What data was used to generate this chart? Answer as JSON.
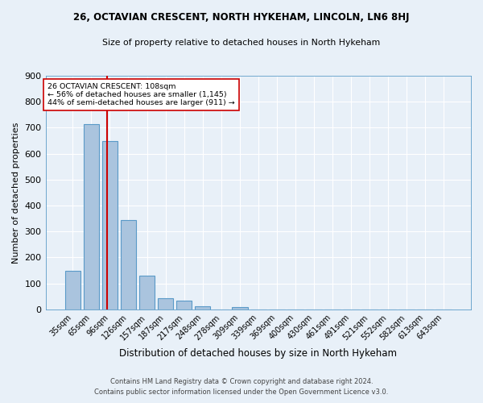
{
  "title1": "26, OCTAVIAN CRESCENT, NORTH HYKEHAM, LINCOLN, LN6 8HJ",
  "title2": "Size of property relative to detached houses in North Hykeham",
  "xlabel": "Distribution of detached houses by size in North Hykeham",
  "ylabel": "Number of detached properties",
  "footer1": "Contains HM Land Registry data © Crown copyright and database right 2024.",
  "footer2": "Contains public sector information licensed under the Open Government Licence v3.0.",
  "categories": [
    "35sqm",
    "65sqm",
    "96sqm",
    "126sqm",
    "157sqm",
    "187sqm",
    "217sqm",
    "248sqm",
    "278sqm",
    "309sqm",
    "339sqm",
    "369sqm",
    "400sqm",
    "430sqm",
    "461sqm",
    "491sqm",
    "521sqm",
    "552sqm",
    "582sqm",
    "613sqm",
    "643sqm"
  ],
  "values": [
    150,
    715,
    650,
    345,
    130,
    42,
    32,
    13,
    0,
    8,
    0,
    0,
    0,
    0,
    0,
    0,
    0,
    0,
    0,
    0,
    0
  ],
  "bar_color": "#aac4de",
  "bar_edge_color": "#5a9ac8",
  "bg_color": "#e8f0f8",
  "grid_color": "#ffffff",
  "vline_color": "#cc0000",
  "annotation_text": "26 OCTAVIAN CRESCENT: 108sqm\n← 56% of detached houses are smaller (1,145)\n44% of semi-detached houses are larger (911) →",
  "annotation_box_color": "#ffffff",
  "annotation_box_edge": "#cc0000",
  "ylim": [
    0,
    900
  ],
  "yticks": [
    0,
    100,
    200,
    300,
    400,
    500,
    600,
    700,
    800,
    900
  ]
}
